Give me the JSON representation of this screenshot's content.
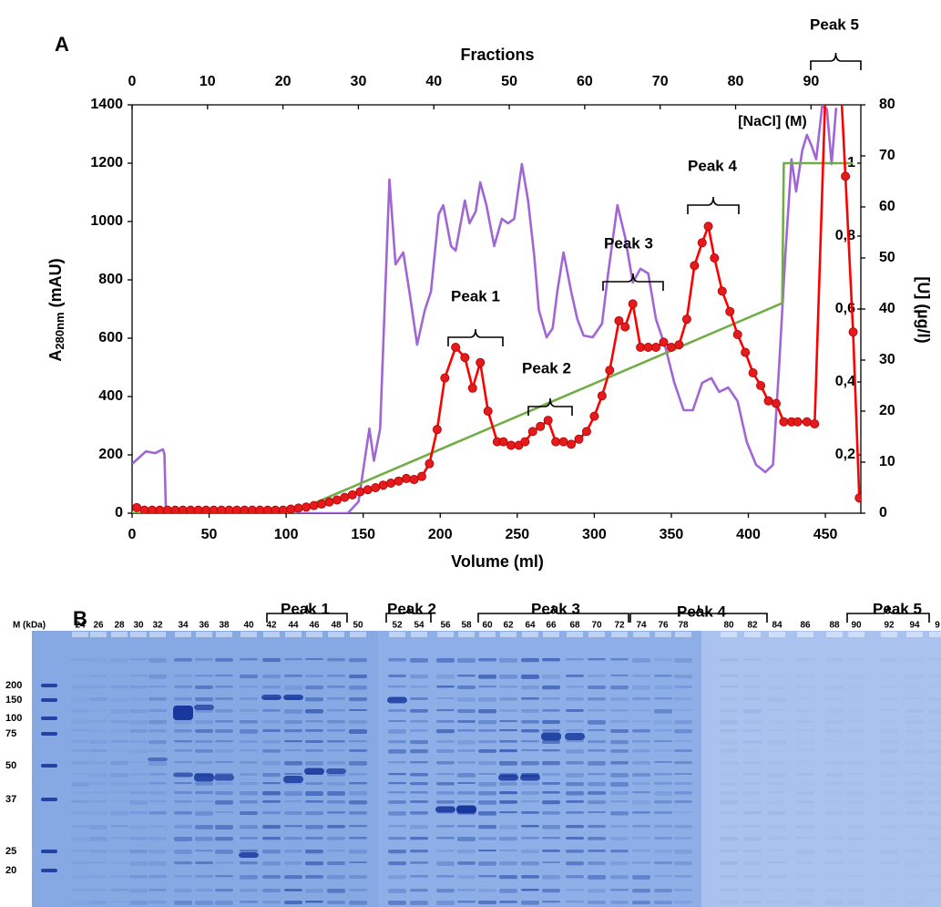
{
  "panel_labels": [
    "A",
    "B"
  ],
  "chart_data": {
    "type": "line",
    "x_label": "Volume (ml)",
    "xlim": [
      0,
      473
    ],
    "xticks": [
      0,
      50,
      100,
      150,
      200,
      250,
      300,
      350,
      400,
      450
    ],
    "x2_label": "Fractions",
    "x2lim": [
      0,
      96.6
    ],
    "x2ticks": [
      0,
      10,
      20,
      30,
      40,
      50,
      60,
      70,
      80,
      90
    ],
    "y_label": {
      "main": "A",
      "sub": "280nm",
      "unit": " (mAU)"
    },
    "ylim": [
      0,
      1400
    ],
    "yticks": [
      0,
      200,
      400,
      600,
      800,
      1000,
      1200,
      1400
    ],
    "y2_label": "[U] (µg/l)",
    "y2lim": [
      0,
      80
    ],
    "y2ticks": [
      0,
      10,
      20,
      30,
      40,
      50,
      60,
      70,
      80
    ],
    "y3_label": "[NaCl] (M)",
    "y3lim": [
      0.04,
      1.16
    ],
    "y3ticks": [
      {
        "value": 0.2,
        "label": "0,2"
      },
      {
        "value": 0.4,
        "label": "0,4"
      },
      {
        "value": 0.6,
        "label": "0,6"
      },
      {
        "value": 0.8,
        "label": "0,8"
      },
      1
    ],
    "series": [
      {
        "color": "#a066d3",
        "axis": "y",
        "x": [
          0,
          9,
          15,
          20,
          21,
          22,
          140,
          147,
          154,
          157,
          161,
          167,
          171,
          176,
          180,
          185,
          190,
          194,
          199,
          202,
          207,
          210,
          216,
          219,
          223,
          226,
          230,
          235,
          240,
          244,
          248,
          253,
          257,
          261,
          264,
          269,
          273,
          276,
          280,
          285,
          289,
          293,
          299,
          305,
          309,
          315,
          320,
          325,
          330,
          335,
          340,
          346,
          352,
          358,
          364,
          370,
          376,
          381,
          387,
          393,
          399,
          405,
          411,
          416,
          420,
          424,
          428,
          431,
          435,
          438,
          441,
          444,
          448,
          451,
          454,
          457
        ],
        "values": [
          169,
          212,
          206,
          219,
          203,
          0,
          0,
          40,
          290,
          180,
          290,
          1144,
          853,
          894,
          760,
          578,
          697,
          760,
          1025,
          1056,
          916,
          900,
          1072,
          994,
          1034,
          1134,
          1056,
          916,
          1009,
          994,
          1009,
          1197,
          1072,
          884,
          697,
          603,
          634,
          760,
          894,
          760,
          665,
          609,
          603,
          650,
          822,
          1056,
          947,
          791,
          838,
          822,
          665,
          572,
          447,
          353,
          353,
          447,
          463,
          416,
          431,
          384,
          244,
          166,
          141,
          166,
          509,
          884,
          1213,
          1103,
          1244,
          1297,
          1260,
          1213,
          1400,
          1384,
          1197,
          1390
        ]
      },
      {
        "color": "#70ad47",
        "axis": "y3",
        "x": [
          0,
          103,
          422,
          423,
          468
        ],
        "values": [
          0.04,
          0.04,
          0.616,
          1,
          1
        ]
      },
      {
        "color": "#ff0000",
        "axis": "y2",
        "markers": true,
        "x": [
          3,
          8,
          13,
          18,
          23,
          28,
          33,
          38,
          43,
          48,
          53,
          58,
          63,
          68,
          73,
          78,
          83,
          88,
          93,
          98,
          103,
          108,
          113,
          118,
          123,
          128,
          133,
          138,
          143,
          148,
          153,
          158,
          163,
          168,
          173,
          178,
          183,
          188,
          193,
          198,
          203,
          210,
          216,
          221,
          226,
          231,
          237,
          241,
          246,
          251,
          255,
          260,
          265,
          270,
          275,
          280,
          285,
          290,
          295,
          300,
          305,
          310,
          316,
          320,
          325,
          330,
          335,
          340,
          345,
          350,
          355,
          360,
          365,
          370,
          374,
          378,
          383,
          388,
          393,
          398,
          403,
          408,
          413,
          418,
          423,
          428,
          432,
          438,
          443,
          454,
          463,
          468,
          472
        ],
        "values": [
          1.1,
          0.6,
          0.6,
          0.6,
          0.6,
          0.6,
          0.6,
          0.6,
          0.6,
          0.6,
          0.6,
          0.6,
          0.6,
          0.6,
          0.6,
          0.6,
          0.6,
          0.6,
          0.6,
          0.6,
          0.8,
          1.0,
          1.2,
          1.5,
          1.8,
          2.2,
          2.6,
          3.1,
          3.6,
          4.2,
          4.6,
          5.0,
          5.5,
          5.9,
          6.3,
          6.8,
          6.6,
          7.2,
          9.7,
          16.4,
          26.5,
          32.5,
          30.5,
          24.5,
          29.5,
          20.0,
          14.0,
          14.0,
          13.3,
          13.3,
          14.0,
          16.0,
          17.0,
          18.2,
          14.0,
          14.0,
          13.5,
          14.5,
          16.0,
          19.0,
          23.0,
          28.0,
          37.7,
          36.5,
          41.0,
          32.5,
          32.5,
          32.5,
          33.5,
          32.5,
          33.0,
          38.0,
          48.5,
          53.0,
          56.2,
          50.0,
          43.5,
          39.5,
          35.0,
          31.5,
          27.5,
          25.0,
          22.0,
          21.5,
          17.9,
          17.9,
          17.9,
          17.9,
          17.5,
          120,
          66.0,
          35.5,
          3.0
        ]
      }
    ],
    "annotations": [
      "Peak 1",
      "Peak 2",
      "Peak 3",
      "Peak 4",
      "Peak 5"
    ]
  },
  "gel": {
    "lane_labels": [
      "M (kDa)",
      "24",
      "26",
      "28",
      "30",
      "32",
      "34",
      "36",
      "38",
      "40",
      "42",
      "44",
      "46",
      "48",
      "50",
      "52",
      "54",
      "56",
      "58",
      "60",
      "62",
      "64",
      "66",
      "68",
      "70",
      "72",
      "74",
      "76",
      "78",
      "80",
      "82",
      "84",
      "86",
      "88",
      "90",
      "92",
      "94",
      "9"
    ],
    "marker_labels": [
      "200",
      "150",
      "100",
      "75",
      "50",
      "37",
      "25",
      "20"
    ],
    "peaks": [
      "Peak 1",
      "Peak 2",
      "Peak 3",
      "Peak 4",
      "Peak 5"
    ]
  }
}
